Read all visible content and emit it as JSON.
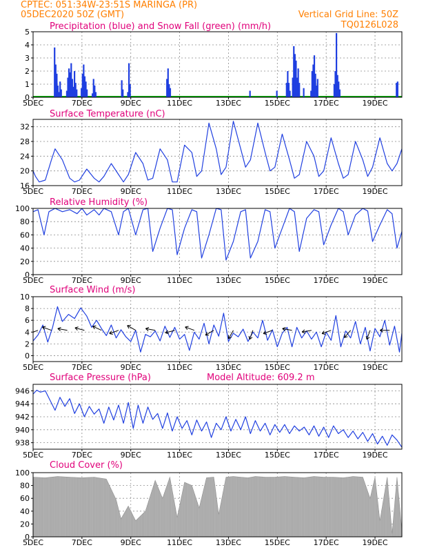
{
  "header": {
    "line1": "CPTEC:   051:34W-23:51S   MARINGA (PR)",
    "line2": "05DEC2020 50Z (GMT)",
    "grid_note": "Vertical Grid Line: 50Z",
    "code": "TQ0126L028"
  },
  "colors": {
    "header": "#ff7f00",
    "title": "#e0007a",
    "series": "#1f3fe0",
    "snow": "#00aa00",
    "cloud": "#a8a8a8"
  },
  "chart_data": [
    {
      "type": "bar",
      "title": "Precipitation (blue) and Snow Fall (green) (mm/h)",
      "x_tick_labels": [
        "5DEC",
        "7DEC",
        "9DEC",
        "11DEC",
        "13DEC",
        "15DEC",
        "17DEC",
        "19DEC"
      ],
      "ylim": [
        0,
        5
      ],
      "y_ticks": [
        0,
        1,
        2,
        3,
        4,
        5
      ],
      "x_range_days": [
        5,
        20.1
      ],
      "precip_events": [
        {
          "day": 5.85,
          "values": [
            3.8,
            2.5,
            1.8,
            0.9,
            0.4,
            1.2,
            0.6
          ]
        },
        {
          "day": 6.35,
          "values": [
            0.5,
            1.5,
            2.2,
            1.9,
            2.6,
            1.4,
            0.8,
            2.0,
            1.1,
            0.6
          ]
        },
        {
          "day": 6.95,
          "values": [
            0.7,
            1.8,
            2.5,
            1.6,
            1.2,
            0.6
          ]
        },
        {
          "day": 7.4,
          "values": [
            0.3,
            1.4,
            0.9,
            0.4
          ]
        },
        {
          "day": 8.6,
          "values": [
            1.3,
            0.6
          ]
        },
        {
          "day": 8.85,
          "values": [
            0.4,
            2.6,
            1.0
          ]
        },
        {
          "day": 10.45,
          "values": [
            1.4,
            2.2,
            1.0,
            0.7
          ]
        },
        {
          "day": 13.85,
          "values": [
            0.5
          ]
        },
        {
          "day": 14.95,
          "values": [
            0.5
          ]
        },
        {
          "day": 15.35,
          "values": [
            1.1,
            2.0,
            1.1,
            0.5
          ]
        },
        {
          "day": 15.6,
          "values": [
            1.5,
            3.9,
            3.3,
            2.8,
            1.5,
            2.2,
            1.1
          ]
        },
        {
          "day": 16.05,
          "values": [
            0.7
          ]
        },
        {
          "day": 16.35,
          "values": [
            0.5,
            2.0,
            2.5,
            3.2,
            1.8,
            0.9,
            1.4
          ]
        },
        {
          "day": 17.3,
          "values": [
            1.0,
            2.0,
            4.9,
            1.7,
            1.2,
            0.6
          ]
        },
        {
          "day": 19.85,
          "values": [
            1.1,
            1.2
          ]
        }
      ]
    },
    {
      "type": "line",
      "title": "Surface Temperature (nC)",
      "x_tick_labels": [
        "5DEC",
        "7DEC",
        "9DEC",
        "11DEC",
        "13DEC",
        "15DEC",
        "17DEC",
        "19DEC"
      ],
      "ylim": [
        16,
        34
      ],
      "y_ticks": [
        16,
        20,
        24,
        28,
        32
      ],
      "x": [
        5.0,
        5.1,
        5.25,
        5.5,
        5.75,
        5.9,
        6.2,
        6.5,
        6.7,
        6.9,
        7.2,
        7.5,
        7.7,
        7.9,
        8.2,
        8.5,
        8.7,
        8.9,
        9.2,
        9.5,
        9.7,
        9.9,
        10.2,
        10.5,
        10.7,
        10.9,
        11.2,
        11.5,
        11.7,
        11.9,
        12.2,
        12.5,
        12.7,
        12.9,
        13.2,
        13.5,
        13.7,
        13.9,
        14.2,
        14.5,
        14.7,
        14.9,
        15.2,
        15.5,
        15.7,
        15.9,
        16.2,
        16.5,
        16.7,
        16.9,
        17.2,
        17.5,
        17.7,
        17.9,
        18.2,
        18.5,
        18.7,
        18.9,
        19.2,
        19.5,
        19.7,
        19.9,
        20.1
      ],
      "y": [
        20,
        18.5,
        17,
        17.5,
        23,
        26,
        23,
        18,
        17,
        17.5,
        20.5,
        18,
        17,
        18.5,
        22,
        19,
        17,
        19,
        25,
        22,
        17.5,
        18,
        26,
        23,
        17,
        17,
        27,
        25,
        18.5,
        20,
        33,
        26,
        19,
        21,
        33.5,
        26,
        21,
        23,
        33,
        25,
        20,
        21,
        30,
        23,
        18,
        19,
        28,
        24,
        18.5,
        20,
        29,
        22,
        18,
        19,
        28,
        23,
        18.5,
        21,
        29,
        22,
        20,
        22,
        26
      ]
    },
    {
      "type": "line",
      "title": "Relative Humidity (%)",
      "x_tick_labels": [
        "5DEC",
        "7DEC",
        "9DEC",
        "11DEC",
        "13DEC",
        "15DEC",
        "17DEC",
        "19DEC"
      ],
      "ylim": [
        0,
        100
      ],
      "y_ticks": [
        0,
        20,
        40,
        60,
        80,
        100
      ],
      "x": [
        5.0,
        5.2,
        5.45,
        5.65,
        5.9,
        6.2,
        6.5,
        6.8,
        7.0,
        7.2,
        7.5,
        7.7,
        7.9,
        8.2,
        8.5,
        8.7,
        8.9,
        9.2,
        9.5,
        9.7,
        9.9,
        10.2,
        10.5,
        10.7,
        10.9,
        11.2,
        11.5,
        11.7,
        11.9,
        12.2,
        12.5,
        12.7,
        12.9,
        13.2,
        13.5,
        13.7,
        13.9,
        14.2,
        14.5,
        14.7,
        14.9,
        15.2,
        15.5,
        15.7,
        15.9,
        16.2,
        16.5,
        16.7,
        16.9,
        17.2,
        17.5,
        17.7,
        17.9,
        18.2,
        18.5,
        18.7,
        18.9,
        19.2,
        19.5,
        19.7,
        19.9,
        20.1
      ],
      "y": [
        95,
        98,
        60,
        95,
        100,
        95,
        98,
        92,
        100,
        90,
        98,
        90,
        100,
        95,
        60,
        95,
        100,
        60,
        98,
        100,
        35,
        70,
        100,
        98,
        30,
        70,
        98,
        95,
        25,
        60,
        100,
        98,
        22,
        50,
        95,
        98,
        25,
        50,
        98,
        95,
        40,
        70,
        100,
        95,
        35,
        85,
        98,
        95,
        45,
        75,
        100,
        95,
        60,
        90,
        100,
        96,
        50,
        75,
        98,
        92,
        40,
        65
      ]
    },
    {
      "type": "line",
      "title": "Surface Wind (m/s)",
      "x_tick_labels": [
        "5DEC",
        "7DEC",
        "9DEC",
        "11DEC",
        "13DEC",
        "15DEC",
        "17DEC",
        "19DEC"
      ],
      "ylim": [
        -1,
        10
      ],
      "y_ticks": [
        0,
        2,
        4,
        6,
        8,
        10
      ],
      "x": [
        5.0,
        5.2,
        5.4,
        5.6,
        5.8,
        6.0,
        6.2,
        6.45,
        6.7,
        6.95,
        7.2,
        7.4,
        7.6,
        7.8,
        8.0,
        8.2,
        8.4,
        8.6,
        8.8,
        9.0,
        9.2,
        9.4,
        9.6,
        9.8,
        10.0,
        10.2,
        10.4,
        10.6,
        10.8,
        11.0,
        11.2,
        11.4,
        11.6,
        11.8,
        12.0,
        12.2,
        12.4,
        12.6,
        12.8,
        13.0,
        13.2,
        13.4,
        13.6,
        13.8,
        14.0,
        14.2,
        14.4,
        14.6,
        14.8,
        15.0,
        15.2,
        15.4,
        15.6,
        15.8,
        16.0,
        16.2,
        16.4,
        16.6,
        16.8,
        17.0,
        17.2,
        17.4,
        17.6,
        17.8,
        18.0,
        18.2,
        18.4,
        18.6,
        18.8,
        19.0,
        19.2,
        19.4,
        19.6,
        19.8,
        20.0,
        20.1
      ],
      "y": [
        2.5,
        3.5,
        5.2,
        2.3,
        4.8,
        8.3,
        5.8,
        7.0,
        6.3,
        8.1,
        6.7,
        4.8,
        6.0,
        4.6,
        3.4,
        5.2,
        3.0,
        4.4,
        3.2,
        2.4,
        4.3,
        0.6,
        3.6,
        3.2,
        4.2,
        2.5,
        5.0,
        3.1,
        4.8,
        2.8,
        3.6,
        0.9,
        4.0,
        2.8,
        5.5,
        2.0,
        5.2,
        3.3,
        7.2,
        2.4,
        3.8,
        3.2,
        4.5,
        2.4,
        4.0,
        3.0,
        6.0,
        2.6,
        4.4,
        1.5,
        3.8,
        4.8,
        1.5,
        4.8,
        3.0,
        4.2,
        2.8,
        4.0,
        1.5,
        4.0,
        2.6,
        6.8,
        1.5,
        4.2,
        3.0,
        5.8,
        2.0,
        4.8,
        0.8,
        4.6,
        3.2,
        6.0,
        1.8,
        5.0,
        0.6,
        3.8
      ]
    },
    {
      "type": "line",
      "title": "Surface Pressure (hPa)",
      "annotation": "Model Altitude: 609.2 m",
      "x_tick_labels": [
        "5DEC",
        "7DEC",
        "9DEC",
        "11DEC",
        "13DEC",
        "15DEC",
        "17DEC",
        "19DEC"
      ],
      "ylim": [
        937,
        947
      ],
      "y_ticks": [
        938,
        940,
        942,
        944,
        946
      ],
      "x": [
        5.0,
        5.15,
        5.3,
        5.5,
        5.7,
        5.9,
        6.1,
        6.3,
        6.5,
        6.7,
        6.9,
        7.1,
        7.3,
        7.5,
        7.7,
        7.9,
        8.1,
        8.3,
        8.5,
        8.7,
        8.9,
        9.1,
        9.3,
        9.5,
        9.7,
        9.9,
        10.1,
        10.3,
        10.5,
        10.7,
        10.9,
        11.1,
        11.3,
        11.5,
        11.7,
        11.9,
        12.1,
        12.3,
        12.5,
        12.7,
        12.9,
        13.1,
        13.3,
        13.5,
        13.7,
        13.9,
        14.1,
        14.3,
        14.5,
        14.7,
        14.9,
        15.1,
        15.3,
        15.5,
        15.7,
        15.9,
        16.1,
        16.3,
        16.5,
        16.7,
        16.9,
        17.1,
        17.3,
        17.5,
        17.7,
        17.9,
        18.1,
        18.3,
        18.5,
        18.7,
        18.9,
        19.1,
        19.3,
        19.5,
        19.7,
        19.9,
        20.1
      ],
      "y": [
        945.5,
        946.1,
        945.8,
        946.0,
        944.5,
        943.0,
        945.0,
        943.6,
        944.8,
        942.5,
        944.0,
        942.0,
        943.6,
        942.4,
        943.2,
        941.0,
        943.5,
        941.5,
        943.8,
        941.0,
        944.2,
        940.2,
        943.8,
        941.0,
        943.5,
        941.6,
        942.5,
        940.2,
        942.6,
        939.8,
        942.0,
        940.2,
        941.4,
        939.2,
        941.5,
        939.8,
        941.2,
        938.8,
        941.0,
        940.0,
        942.0,
        939.8,
        941.6,
        940.0,
        942.0,
        939.4,
        941.4,
        939.8,
        941.0,
        939.2,
        940.8,
        939.6,
        940.8,
        939.4,
        940.6,
        939.8,
        940.4,
        939.2,
        940.6,
        939.0,
        940.4,
        938.8,
        940.6,
        939.4,
        940.0,
        938.8,
        939.8,
        938.6,
        939.6,
        938.2,
        939.4,
        937.8,
        939.0,
        937.6,
        939.2,
        938.4,
        937.3
      ]
    },
    {
      "type": "area",
      "title": "Cloud Cover (%)",
      "x_tick_labels": [
        "5DEC",
        "7DEC",
        "9DEC",
        "11DEC",
        "13DEC",
        "15DEC",
        "17DEC",
        "19DEC"
      ],
      "ylim": [
        0,
        100
      ],
      "y_ticks": [
        0,
        20,
        40,
        60,
        80,
        100
      ],
      "x": [
        5.0,
        5.5,
        6.0,
        6.5,
        7.0,
        7.5,
        8.0,
        8.4,
        8.6,
        8.9,
        9.2,
        9.6,
        10.0,
        10.3,
        10.6,
        10.9,
        11.2,
        11.5,
        11.8,
        12.1,
        12.4,
        12.6,
        12.9,
        13.2,
        13.5,
        13.8,
        14.1,
        14.5,
        14.9,
        15.3,
        15.7,
        16.1,
        16.5,
        16.9,
        17.3,
        17.7,
        18.1,
        18.5,
        18.8,
        19.0,
        19.2,
        19.5,
        19.7,
        19.9,
        20.1
      ],
      "y": [
        93,
        92,
        94,
        93,
        92,
        93,
        90,
        58,
        28,
        48,
        25,
        40,
        88,
        60,
        93,
        30,
        85,
        80,
        45,
        92,
        93,
        35,
        93,
        94,
        93,
        92,
        94,
        93,
        93,
        94,
        93,
        92,
        94,
        93,
        93,
        92,
        94,
        93,
        60,
        93,
        25,
        93,
        5,
        93,
        10
      ]
    }
  ]
}
